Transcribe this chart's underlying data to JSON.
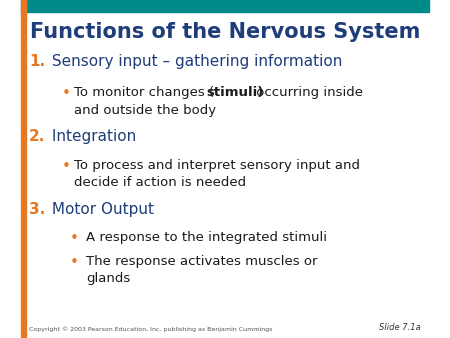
{
  "title": "Functions of the Nervous System",
  "title_color": "#1F3D7A",
  "title_fontsize": 15,
  "background_color": "#FFFFFF",
  "top_bar_color": "#008B8B",
  "left_bar_color": "#E87722",
  "orange_color": "#E87722",
  "dark_blue_color": "#1F3D7A",
  "black_color": "#1a1a1a",
  "bullet_color": "#E87722",
  "copyright_text": "Copyright © 2003 Pearson Education, Inc. publishing as Benjamin Cummings",
  "slide_label": "Slide 7.1a",
  "items": [
    {
      "number": "1.",
      "main_text": " Sensory input – gathering information",
      "bullets": [
        {
          "text_parts": [
            {
              "text": "To monitor changes (",
              "bold": false
            },
            {
              "text": "stimuli)",
              "bold": true
            },
            {
              "text": " occurring inside\n     and outside the body",
              "bold": false
            }
          ]
        }
      ]
    },
    {
      "number": "2.",
      "main_text": " Integration",
      "bullets": [
        {
          "text_parts": [
            {
              "text": "To process and interpret sensory input and\n     decide if action is needed",
              "bold": false
            }
          ]
        }
      ]
    },
    {
      "number": "3.",
      "main_text": " Motor Output",
      "bullets": [
        {
          "text_parts": [
            {
              "text": "A response to the integrated stimuli",
              "bold": false
            }
          ]
        },
        {
          "text_parts": [
            {
              "text": "The response activates muscles or\n       glands",
              "bold": false
            }
          ]
        }
      ]
    }
  ]
}
